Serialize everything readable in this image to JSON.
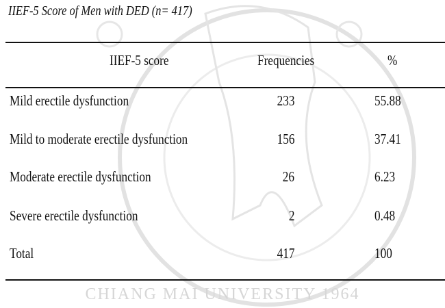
{
  "caption": "IIEF-5 Score of Men with DED (n= 417)",
  "watermark": {
    "text": "CHIANG MAI UNIVERSITY 1964",
    "color": "#d8d8d8"
  },
  "table": {
    "headers": [
      "IIEF-5 score",
      "Frequencies",
      "%"
    ],
    "rows": [
      {
        "label": "Mild erectile dysfunction",
        "frequency": "233",
        "percent": "55.88"
      },
      {
        "label": "Mild to moderate erectile dysfunction",
        "frequency": "156",
        "percent": "37.41"
      },
      {
        "label": "Moderate erectile dysfunction",
        "frequency": "26",
        "percent": "6.23"
      },
      {
        "label": "Severe erectile dysfunction",
        "frequency": "2",
        "percent": "0.48"
      },
      {
        "label": "Total",
        "frequency": "417",
        "percent": "100"
      }
    ]
  }
}
